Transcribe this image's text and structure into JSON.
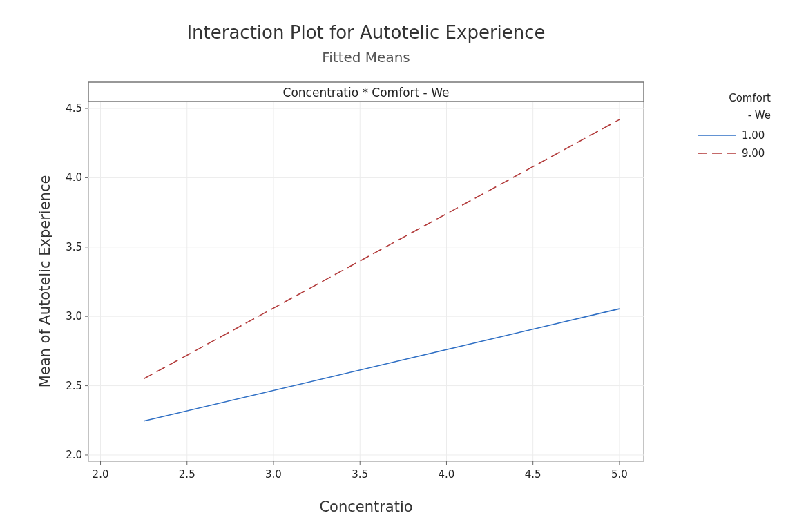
{
  "chart_data": {
    "type": "line",
    "title": "Interaction Plot for Autotelic Experience",
    "subtitle": "Fitted Means",
    "annotations": [
      "Concentratio * Comfort - We"
    ],
    "xlabel": "Concentratio",
    "ylabel": "Mean of Autotelic Experience",
    "legend_title": "Comfort - We",
    "x": [
      2.25,
      5.0
    ],
    "series": [
      {
        "name": "1.00",
        "color": "#2f6fc4",
        "values": [
          2.245,
          3.055
        ],
        "line_style": "solid"
      },
      {
        "name": "9.00",
        "color": "#b23a3a",
        "values": [
          2.55,
          4.42
        ],
        "line_style": "dashed"
      }
    ],
    "xlim": [
      1.93,
      5.14
    ],
    "xticks": [
      {
        "value": 2,
        "label": "2.0"
      },
      {
        "value": 2.5,
        "label": "2.5"
      },
      {
        "value": 3,
        "label": "3.0"
      },
      {
        "value": 3.5,
        "label": "3.5"
      },
      {
        "value": 4,
        "label": "4.0"
      },
      {
        "value": 4.5,
        "label": "4.5"
      },
      {
        "value": 5,
        "label": "5.0"
      }
    ],
    "ylim": [
      1.955,
      4.55
    ],
    "yticks": [
      {
        "value": 2,
        "label": "2.0"
      },
      {
        "value": 2.5,
        "label": "2.5"
      },
      {
        "value": 3,
        "label": "3.0"
      },
      {
        "value": 3.5,
        "label": "3.5"
      },
      {
        "value": 4,
        "label": "4.0"
      },
      {
        "value": 4.5,
        "label": "4.5"
      }
    ],
    "grid": true,
    "legend": "right",
    "marker": "none"
  }
}
